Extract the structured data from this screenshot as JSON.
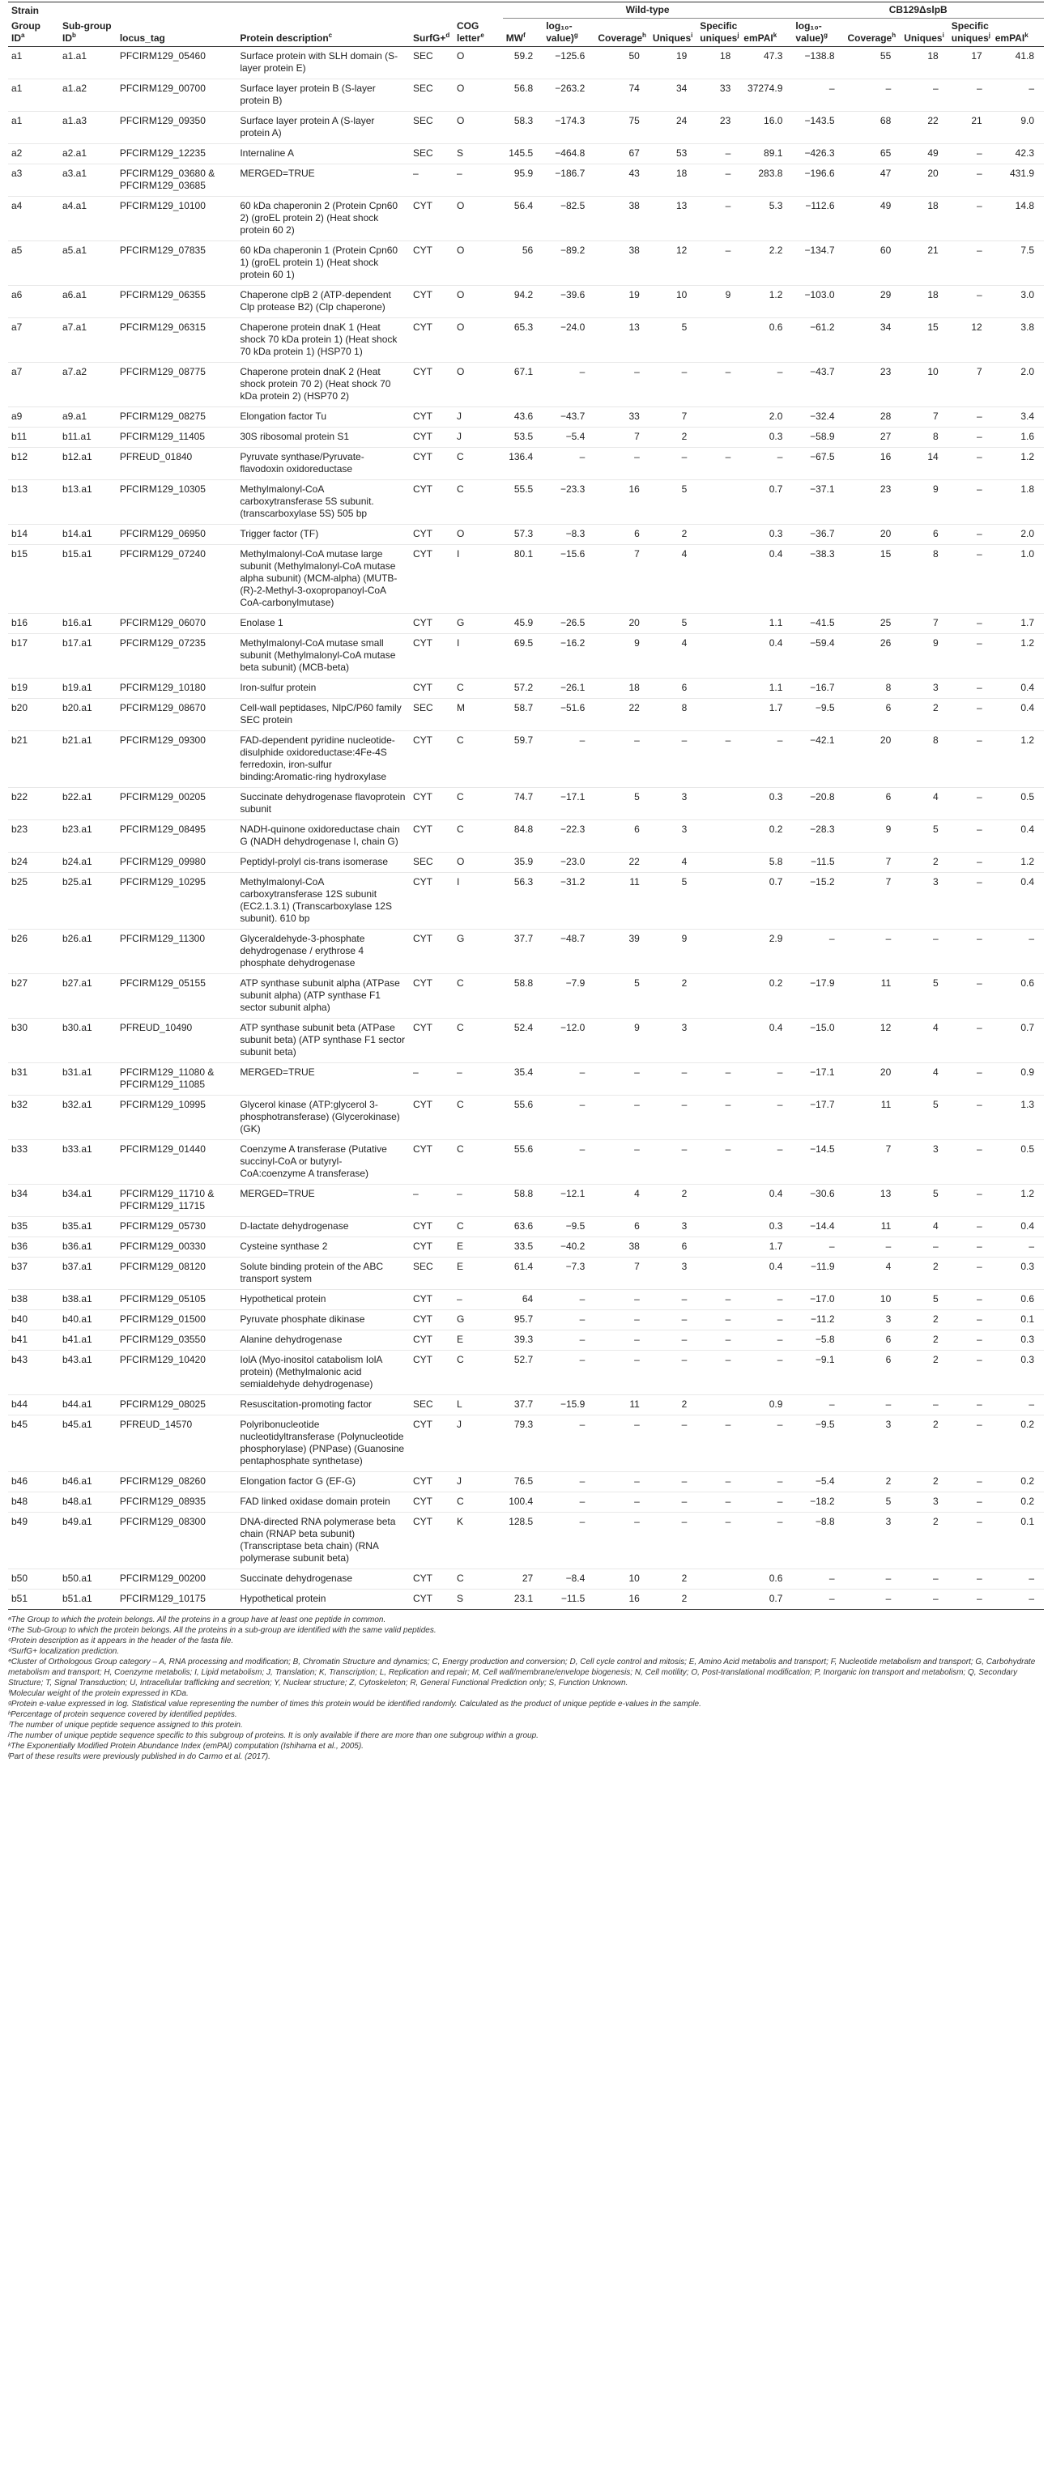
{
  "header": {
    "strain": "Strain",
    "wild_type": "Wild-type",
    "mutant": "CB129ΔslpB",
    "columns": [
      {
        "label": "Group ID",
        "sup": "a"
      },
      {
        "label": "Sub-group ID",
        "sup": "b"
      },
      {
        "label": "locus_tag",
        "sup": ""
      },
      {
        "label": "Protein description",
        "sup": "c"
      },
      {
        "label": "SurfG+",
        "sup": "d"
      },
      {
        "label": "COG letter",
        "sup": "e"
      },
      {
        "label": "MW",
        "sup": "f"
      },
      {
        "label": "log₁₀-value)",
        "sup": "g"
      },
      {
        "label": "Coverage",
        "sup": "h"
      },
      {
        "label": "Uniques",
        "sup": "i"
      },
      {
        "label": "Specific uniques",
        "sup": "j"
      },
      {
        "label": "emPAI",
        "sup": "k"
      },
      {
        "label": "log₁₀-value)",
        "sup": "g"
      },
      {
        "label": "Coverage",
        "sup": "h"
      },
      {
        "label": "Uniques",
        "sup": "i"
      },
      {
        "label": "Specific uniques",
        "sup": "j"
      },
      {
        "label": "emPAI",
        "sup": "k"
      }
    ]
  },
  "rows": [
    [
      "a1",
      "a1.a1",
      "PFCIRM129_05460",
      "Surface protein with SLH domain (S-layer protein E)",
      "SEC",
      "O",
      "59.2",
      "−125.6",
      "50",
      "19",
      "18",
      "47.3",
      "−138.8",
      "55",
      "18",
      "17",
      "41.8"
    ],
    [
      "a1",
      "a1.a2",
      "PFCIRM129_00700",
      "Surface layer protein B (S-layer protein B)",
      "SEC",
      "O",
      "56.8",
      "−263.2",
      "74",
      "34",
      "33",
      "37274.9",
      "–",
      "–",
      "–",
      "–",
      "–"
    ],
    [
      "a1",
      "a1.a3",
      "PFCIRM129_09350",
      "Surface layer protein A (S-layer protein A)",
      "SEC",
      "O",
      "58.3",
      "−174.3",
      "75",
      "24",
      "23",
      "16.0",
      "−143.5",
      "68",
      "22",
      "21",
      "9.0"
    ],
    [
      "a2",
      "a2.a1",
      "PFCIRM129_12235",
      "Internaline A",
      "SEC",
      "S",
      "145.5",
      "−464.8",
      "67",
      "53",
      "–",
      "89.1",
      "−426.3",
      "65",
      "49",
      "–",
      "42.3"
    ],
    [
      "a3",
      "a3.a1",
      "PFCIRM129_03680 & PFCIRM129_03685",
      "MERGED=TRUE",
      "–",
      "–",
      "95.9",
      "−186.7",
      "43",
      "18",
      "–",
      "283.8",
      "−196.6",
      "47",
      "20",
      "–",
      "431.9"
    ],
    [
      "a4",
      "a4.a1",
      "PFCIRM129_10100",
      "60 kDa chaperonin 2 (Protein Cpn60 2) (groEL protein 2) (Heat shock protein 60 2)",
      "CYT",
      "O",
      "56.4",
      "−82.5",
      "38",
      "13",
      "–",
      "5.3",
      "−112.6",
      "49",
      "18",
      "–",
      "14.8"
    ],
    [
      "a5",
      "a5.a1",
      "PFCIRM129_07835",
      "60 kDa chaperonin 1 (Protein Cpn60 1) (groEL protein 1) (Heat shock protein 60 1)",
      "CYT",
      "O",
      "56",
      "−89.2",
      "38",
      "12",
      "–",
      "2.2",
      "−134.7",
      "60",
      "21",
      "–",
      "7.5"
    ],
    [
      "a6",
      "a6.a1",
      "PFCIRM129_06355",
      "Chaperone clpB 2 (ATP-dependent Clp protease B2) (Clp chaperone)",
      "CYT",
      "O",
      "94.2",
      "−39.6",
      "19",
      "10",
      "9",
      "1.2",
      "−103.0",
      "29",
      "18",
      "–",
      "3.0"
    ],
    [
      "a7",
      "a7.a1",
      "PFCIRM129_06315",
      "Chaperone protein dnaK 1 (Heat shock 70 kDa protein 1) (Heat shock 70 kDa protein 1) (HSP70 1)",
      "CYT",
      "O",
      "65.3",
      "−24.0",
      "13",
      "5",
      "",
      "0.6",
      "−61.2",
      "34",
      "15",
      "12",
      "3.8"
    ],
    [
      "a7",
      "a7.a2",
      "PFCIRM129_08775",
      "Chaperone protein dnaK 2 (Heat shock protein 70 2) (Heat shock 70 kDa protein 2) (HSP70 2)",
      "CYT",
      "O",
      "67.1",
      "–",
      "–",
      "–",
      "–",
      "–",
      "−43.7",
      "23",
      "10",
      "7",
      "2.0"
    ],
    [
      "a9",
      "a9.a1",
      "PFCIRM129_08275",
      "Elongation factor Tu",
      "CYT",
      "J",
      "43.6",
      "−43.7",
      "33",
      "7",
      "",
      "2.0",
      "−32.4",
      "28",
      "7",
      "–",
      "3.4"
    ],
    [
      "b11",
      "b11.a1",
      "PFCIRM129_11405",
      "30S ribosomal protein S1",
      "CYT",
      "J",
      "53.5",
      "−5.4",
      "7",
      "2",
      "",
      "0.3",
      "−58.9",
      "27",
      "8",
      "–",
      "1.6"
    ],
    [
      "b12",
      "b12.a1",
      "PFREUD_01840",
      "Pyruvate synthase/Pyruvate-flavodoxin oxidoreductase",
      "CYT",
      "C",
      "136.4",
      "–",
      "–",
      "–",
      "–",
      "–",
      "−67.5",
      "16",
      "14",
      "–",
      "1.2"
    ],
    [
      "b13",
      "b13.a1",
      "PFCIRM129_10305",
      "Methylmalonyl-CoA carboxytransferase 5S subunit. (transcarboxylase 5S) 505 bp",
      "CYT",
      "C",
      "55.5",
      "−23.3",
      "16",
      "5",
      "",
      "0.7",
      "−37.1",
      "23",
      "9",
      "–",
      "1.8"
    ],
    [
      "b14",
      "b14.a1",
      "PFCIRM129_06950",
      "Trigger factor (TF)",
      "CYT",
      "O",
      "57.3",
      "−8.3",
      "6",
      "2",
      "",
      "0.3",
      "−36.7",
      "20",
      "6",
      "–",
      "2.0"
    ],
    [
      "b15",
      "b15.a1",
      "PFCIRM129_07240",
      "Methylmalonyl-CoA mutase large subunit (Methylmalonyl-CoA mutase alpha subunit) (MCM-alpha) (MUTB-(R)-2-Methyl-3-oxopropanoyl-CoA CoA-carbonylmutase)",
      "CYT",
      "I",
      "80.1",
      "−15.6",
      "7",
      "4",
      "",
      "0.4",
      "−38.3",
      "15",
      "8",
      "–",
      "1.0"
    ],
    [
      "b16",
      "b16.a1",
      "PFCIRM129_06070",
      "Enolase 1",
      "CYT",
      "G",
      "45.9",
      "−26.5",
      "20",
      "5",
      "",
      "1.1",
      "−41.5",
      "25",
      "7",
      "–",
      "1.7"
    ],
    [
      "b17",
      "b17.a1",
      "PFCIRM129_07235",
      "Methylmalonyl-CoA mutase small subunit (Methylmalonyl-CoA mutase beta subunit) (MCB-beta)",
      "CYT",
      "I",
      "69.5",
      "−16.2",
      "9",
      "4",
      "",
      "0.4",
      "−59.4",
      "26",
      "9",
      "–",
      "1.2"
    ],
    [
      "b19",
      "b19.a1",
      "PFCIRM129_10180",
      "Iron-sulfur protein",
      "CYT",
      "C",
      "57.2",
      "−26.1",
      "18",
      "6",
      "",
      "1.1",
      "−16.7",
      "8",
      "3",
      "–",
      "0.4"
    ],
    [
      "b20",
      "b20.a1",
      "PFCIRM129_08670",
      "Cell-wall peptidases, NlpC/P60 family SEC protein",
      "SEC",
      "M",
      "58.7",
      "−51.6",
      "22",
      "8",
      "",
      "1.7",
      "−9.5",
      "6",
      "2",
      "–",
      "0.4"
    ],
    [
      "b21",
      "b21.a1",
      "PFCIRM129_09300",
      "FAD-dependent pyridine nucleotide-disulphide oxidoreductase:4Fe-4S ferredoxin, iron-sulfur binding:Aromatic-ring hydroxylase",
      "CYT",
      "C",
      "59.7",
      "–",
      "–",
      "–",
      "–",
      "–",
      "−42.1",
      "20",
      "8",
      "–",
      "1.2"
    ],
    [
      "b22",
      "b22.a1",
      "PFCIRM129_00205",
      "Succinate dehydrogenase flavoprotein subunit",
      "CYT",
      "C",
      "74.7",
      "−17.1",
      "5",
      "3",
      "",
      "0.3",
      "−20.8",
      "6",
      "4",
      "–",
      "0.5"
    ],
    [
      "b23",
      "b23.a1",
      "PFCIRM129_08495",
      "NADH-quinone oxidoreductase chain G (NADH dehydrogenase I, chain G)",
      "CYT",
      "C",
      "84.8",
      "−22.3",
      "6",
      "3",
      "",
      "0.2",
      "−28.3",
      "9",
      "5",
      "–",
      "0.4"
    ],
    [
      "b24",
      "b24.a1",
      "PFCIRM129_09980",
      "Peptidyl-prolyl cis-trans isomerase",
      "SEC",
      "O",
      "35.9",
      "−23.0",
      "22",
      "4",
      "",
      "5.8",
      "−11.5",
      "7",
      "2",
      "–",
      "1.2"
    ],
    [
      "b25",
      "b25.a1",
      "PFCIRM129_10295",
      "Methylmalonyl-CoA carboxytransferase 12S subunit (EC2.1.3.1) (Transcarboxylase 12S subunit). 610 bp",
      "CYT",
      "I",
      "56.3",
      "−31.2",
      "11",
      "5",
      "",
      "0.7",
      "−15.2",
      "7",
      "3",
      "–",
      "0.4"
    ],
    [
      "b26",
      "b26.a1",
      "PFCIRM129_11300",
      "Glyceraldehyde-3-phosphate dehydrogenase / erythrose 4 phosphate dehydrogenase",
      "CYT",
      "G",
      "37.7",
      "−48.7",
      "39",
      "9",
      "",
      "2.9",
      "–",
      "–",
      "–",
      "–",
      "–"
    ],
    [
      "b27",
      "b27.a1",
      "PFCIRM129_05155",
      "ATP synthase subunit alpha (ATPase subunit alpha) (ATP synthase F1 sector subunit alpha)",
      "CYT",
      "C",
      "58.8",
      "−7.9",
      "5",
      "2",
      "",
      "0.2",
      "−17.9",
      "11",
      "5",
      "–",
      "0.6"
    ],
    [
      "b30",
      "b30.a1",
      "PFREUD_10490",
      "ATP synthase subunit beta (ATPase subunit beta) (ATP synthase F1 sector subunit beta)",
      "CYT",
      "C",
      "52.4",
      "−12.0",
      "9",
      "3",
      "",
      "0.4",
      "−15.0",
      "12",
      "4",
      "–",
      "0.7"
    ],
    [
      "b31",
      "b31.a1",
      "PFCIRM129_11080 & PFCIRM129_11085",
      "MERGED=TRUE",
      "–",
      "–",
      "35.4",
      "–",
      "–",
      "–",
      "–",
      "–",
      "−17.1",
      "20",
      "4",
      "–",
      "0.9"
    ],
    [
      "b32",
      "b32.a1",
      "PFCIRM129_10995",
      "Glycerol kinase (ATP:glycerol 3-phosphotransferase) (Glycerokinase) (GK)",
      "CYT",
      "C",
      "55.6",
      "–",
      "–",
      "–",
      "–",
      "–",
      "−17.7",
      "11",
      "5",
      "–",
      "1.3"
    ],
    [
      "b33",
      "b33.a1",
      "PFCIRM129_01440",
      "Coenzyme A transferase (Putative succinyl-CoA or butyryl-CoA:coenzyme A transferase)",
      "CYT",
      "C",
      "55.6",
      "–",
      "–",
      "–",
      "–",
      "–",
      "−14.5",
      "7",
      "3",
      "–",
      "0.5"
    ],
    [
      "b34",
      "b34.a1",
      "PFCIRM129_11710 & PFCIRM129_11715",
      "MERGED=TRUE",
      "–",
      "–",
      "58.8",
      "−12.1",
      "4",
      "2",
      "",
      "0.4",
      "−30.6",
      "13",
      "5",
      "–",
      "1.2"
    ],
    [
      "b35",
      "b35.a1",
      "PFCIRM129_05730",
      "D-lactate dehydrogenase",
      "CYT",
      "C",
      "63.6",
      "−9.5",
      "6",
      "3",
      "",
      "0.3",
      "−14.4",
      "11",
      "4",
      "–",
      "0.4"
    ],
    [
      "b36",
      "b36.a1",
      "PFCIRM129_00330",
      "Cysteine synthase 2",
      "CYT",
      "E",
      "33.5",
      "−40.2",
      "38",
      "6",
      "",
      "1.7",
      "–",
      "–",
      "–",
      "–",
      "–"
    ],
    [
      "b37",
      "b37.a1",
      "PFCIRM129_08120",
      "Solute binding protein of the ABC transport system",
      "SEC",
      "E",
      "61.4",
      "−7.3",
      "7",
      "3",
      "",
      "0.4",
      "−11.9",
      "4",
      "2",
      "–",
      "0.3"
    ],
    [
      "b38",
      "b38.a1",
      "PFCIRM129_05105",
      "Hypothetical protein",
      "CYT",
      "–",
      "64",
      "–",
      "–",
      "–",
      "–",
      "–",
      "−17.0",
      "10",
      "5",
      "–",
      "0.6"
    ],
    [
      "b40",
      "b40.a1",
      "PFCIRM129_01500",
      "Pyruvate phosphate dikinase",
      "CYT",
      "G",
      "95.7",
      "–",
      "–",
      "–",
      "–",
      "–",
      "−11.2",
      "3",
      "2",
      "–",
      "0.1"
    ],
    [
      "b41",
      "b41.a1",
      "PFCIRM129_03550",
      "Alanine dehydrogenase",
      "CYT",
      "E",
      "39.3",
      "–",
      "–",
      "–",
      "–",
      "–",
      "−5.8",
      "6",
      "2",
      "–",
      "0.3"
    ],
    [
      "b43",
      "b43.a1",
      "PFCIRM129_10420",
      "IolA (Myo-inositol catabolism IolA protein) (Methylmalonic acid semialdehyde dehydrogenase)",
      "CYT",
      "C",
      "52.7",
      "–",
      "–",
      "–",
      "–",
      "–",
      "−9.1",
      "6",
      "2",
      "–",
      "0.3"
    ],
    [
      "b44",
      "b44.a1",
      "PFCIRM129_08025",
      "Resuscitation-promoting factor",
      "SEC",
      "L",
      "37.7",
      "−15.9",
      "11",
      "2",
      "",
      "0.9",
      "–",
      "–",
      "–",
      "–",
      "–"
    ],
    [
      "b45",
      "b45.a1",
      "PFREUD_14570",
      "Polyribonucleotide nucleotidyltransferase (Polynucleotide phosphorylase) (PNPase) (Guanosine pentaphosphate synthetase)",
      "CYT",
      "J",
      "79.3",
      "–",
      "–",
      "–",
      "–",
      "–",
      "−9.5",
      "3",
      "2",
      "–",
      "0.2"
    ],
    [
      "b46",
      "b46.a1",
      "PFCIRM129_08260",
      "Elongation factor G (EF-G)",
      "CYT",
      "J",
      "76.5",
      "–",
      "–",
      "–",
      "–",
      "–",
      "−5.4",
      "2",
      "2",
      "–",
      "0.2"
    ],
    [
      "b48",
      "b48.a1",
      "PFCIRM129_08935",
      "FAD linked oxidase domain protein",
      "CYT",
      "C",
      "100.4",
      "–",
      "–",
      "–",
      "–",
      "–",
      "−18.2",
      "5",
      "3",
      "–",
      "0.2"
    ],
    [
      "b49",
      "b49.a1",
      "PFCIRM129_08300",
      "DNA-directed RNA polymerase beta chain (RNAP beta subunit) (Transcriptase beta chain) (RNA polymerase subunit beta)",
      "CYT",
      "K",
      "128.5",
      "–",
      "–",
      "–",
      "–",
      "–",
      "−8.8",
      "3",
      "2",
      "–",
      "0.1"
    ],
    [
      "b50",
      "b50.a1",
      "PFCIRM129_00200",
      "Succinate dehydrogenase",
      "CYT",
      "C",
      "27",
      "−8.4",
      "10",
      "2",
      "",
      "0.6",
      "–",
      "–",
      "–",
      "–",
      "–"
    ],
    [
      "b51",
      "b51.a1",
      "PFCIRM129_10175",
      "Hypothetical protein",
      "CYT",
      "S",
      "23.1",
      "−11.5",
      "16",
      "2",
      "",
      "0.7",
      "–",
      "–",
      "–",
      "–",
      "–"
    ]
  ],
  "footnotes": [
    "ᵃThe Group to which the protein belongs. All the proteins in a group have at least one peptide in common.",
    "ᵇThe Sub-Group to which the protein belongs. All the proteins in a sub-group are identified with the same valid peptides.",
    "ᶜProtein description as it appears in the header of the fasta file.",
    "ᵈSurfG+ localization prediction.",
    "ᵉCluster of Orthologous Group category – A, RNA processing and modification; B, Chromatin Structure and dynamics; C, Energy production and conversion; D, Cell cycle control and mitosis; E, Amino Acid metabolis and transport; F, Nucleotide metabolism and transport; G, Carbohydrate metabolism and transport; H, Coenzyme metabolis; I, Lipid metabolism; J, Translation; K, Transcription; L, Replication and repair; M, Cell wall/membrane/envelope biogenesis; N, Cell motility; O, Post-translational modification; P, Inorganic ion transport and metabolism; Q, Secondary Structure; T, Signal Transduction; U, Intracellular trafficking and secretion; Y, Nuclear structure; Z, Cytoskeleton; R, General Functional Prediction only; S, Function Unknown.",
    "ᶠMolecular weight of the protein expressed in KDa.",
    "ᵍProtein e-value expressed in log. Statistical value representing the number of times this protein would be identified randomly. Calculated as the product of unique peptide e-values in the sample.",
    "ʰPercentage of protein sequence covered by identified peptides.",
    "ⁱThe number of unique peptide sequence assigned to this protein.",
    "ʲThe number of unique peptide sequence specific to this subgroup of proteins. It is only available if there are more than one subgroup within a group.",
    "ᵏThe Exponentially Modified Protein Abundance Index (emPAI) computation (Ishihama et al., 2005).",
    "ˡPart of these results were previously published in do Carmo et al. (2017)."
  ]
}
